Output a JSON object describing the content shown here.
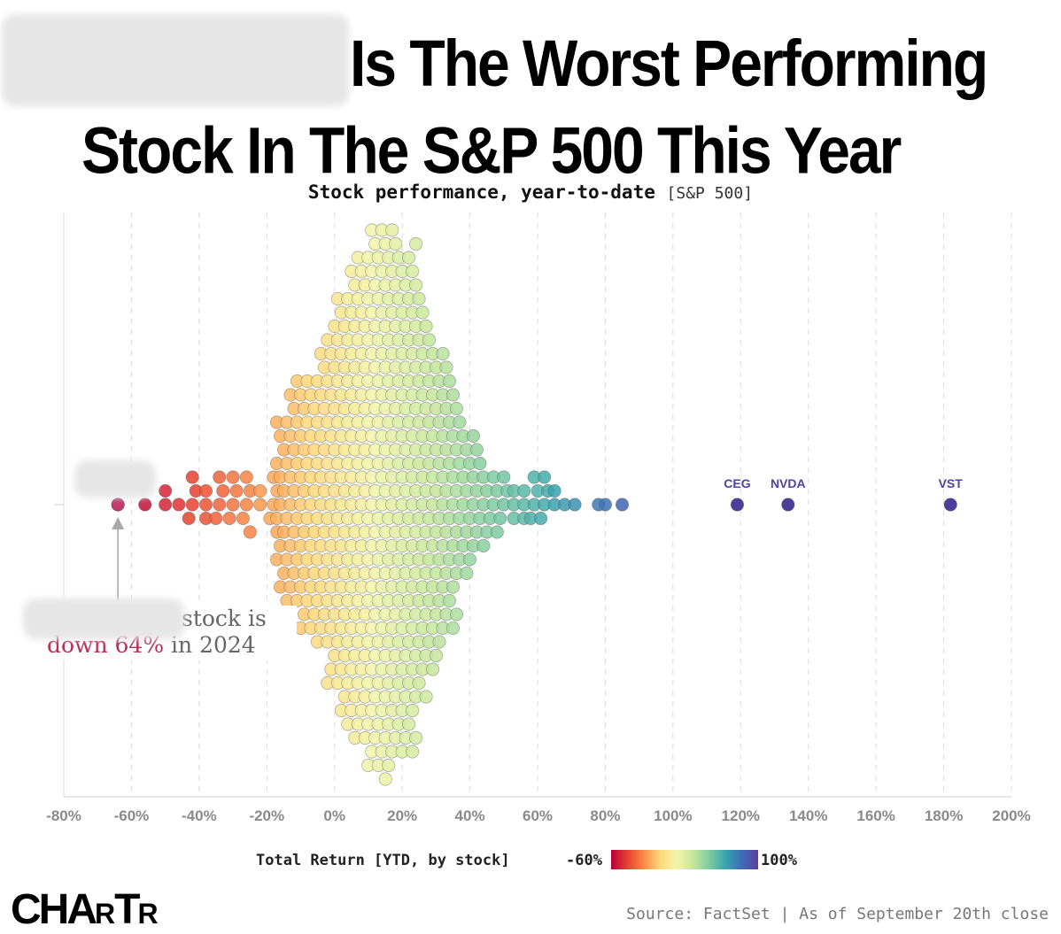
{
  "title": {
    "line1": "Is The Worst Performing",
    "line2": "Stock In The S&P 500 This Year"
  },
  "subtitle": {
    "main": "Stock performance, year-to-date",
    "tag": "[S&P 500]"
  },
  "annotation": {
    "part1": "stock is",
    "part2_red": "down 64%",
    "part2_rest": " in 2024"
  },
  "legend": {
    "label": "Total Return [YTD, by stock]",
    "min_label": "-60%",
    "max_label": "100%"
  },
  "source": "Source: FactSet | As of September 20th close",
  "logo": {
    "big1": "CHA",
    "small": "R",
    "big2": "T"
  },
  "colors": {
    "scale": [
      "#b5003a",
      "#e8402f",
      "#f98b45",
      "#fed87a",
      "#f2f5a8",
      "#c6e69c",
      "#7fcca1",
      "#3aa5ae",
      "#3c6cb6",
      "#5e3e9e"
    ],
    "highlight": "#c2396b",
    "label": "#4b45a0"
  },
  "chart_data": {
    "type": "scatter",
    "subtype": "beeswarm",
    "x_ticks": [
      "-80%",
      "-60%",
      "-40%",
      "-20%",
      "0%",
      "20%",
      "40%",
      "60%",
      "80%",
      "100%",
      "120%",
      "140%",
      "160%",
      "180%",
      "200%"
    ],
    "xlim": [
      -80,
      200
    ],
    "x_unit": "% total return YTD",
    "color_domain": [
      -60,
      100
    ],
    "grid": true,
    "highlighted_stock_return": -64,
    "labeled_points": [
      {
        "label": "CEG",
        "value": 119
      },
      {
        "label": "NVDA",
        "value": 134
      },
      {
        "label": "VST",
        "value": 182
      }
    ],
    "distribution": [
      {
        "value": -64,
        "count": 1
      },
      {
        "value": -56,
        "count": 1
      },
      {
        "value": -50,
        "count": 2
      },
      {
        "value": -46,
        "count": 1
      },
      {
        "value": -42,
        "count": 4
      },
      {
        "value": -38,
        "count": 3
      },
      {
        "value": -34,
        "count": 4
      },
      {
        "value": -30,
        "count": 4
      },
      {
        "value": -26,
        "count": 5
      },
      {
        "value": -22,
        "count": 2
      },
      {
        "value": -18,
        "count": 5
      },
      {
        "value": -16,
        "count": 13
      },
      {
        "value": -13,
        "count": 16
      },
      {
        "value": -10,
        "count": 19
      },
      {
        "value": -7,
        "count": 19
      },
      {
        "value": -4,
        "count": 22
      },
      {
        "value": -1,
        "count": 27
      },
      {
        "value": 2,
        "count": 31
      },
      {
        "value": 5,
        "count": 35
      },
      {
        "value": 8,
        "count": 36
      },
      {
        "value": 11,
        "count": 40
      },
      {
        "value": 14,
        "count": 41
      },
      {
        "value": 17,
        "count": 40
      },
      {
        "value": 20,
        "count": 37
      },
      {
        "value": 23,
        "count": 38
      },
      {
        "value": 26,
        "count": 30
      },
      {
        "value": 29,
        "count": 25
      },
      {
        "value": 32,
        "count": 22
      },
      {
        "value": 35,
        "count": 19
      },
      {
        "value": 38,
        "count": 12
      },
      {
        "value": 41,
        "count": 10
      },
      {
        "value": 44,
        "count": 7
      },
      {
        "value": 47,
        "count": 5
      },
      {
        "value": 50,
        "count": 4
      },
      {
        "value": 53,
        "count": 3
      },
      {
        "value": 56,
        "count": 3
      },
      {
        "value": 59,
        "count": 4
      },
      {
        "value": 62,
        "count": 4
      },
      {
        "value": 65,
        "count": 2
      },
      {
        "value": 68,
        "count": 1
      },
      {
        "value": 71,
        "count": 1
      },
      {
        "value": 78,
        "count": 1
      },
      {
        "value": 80,
        "count": 1
      },
      {
        "value": 85,
        "count": 1
      }
    ]
  }
}
